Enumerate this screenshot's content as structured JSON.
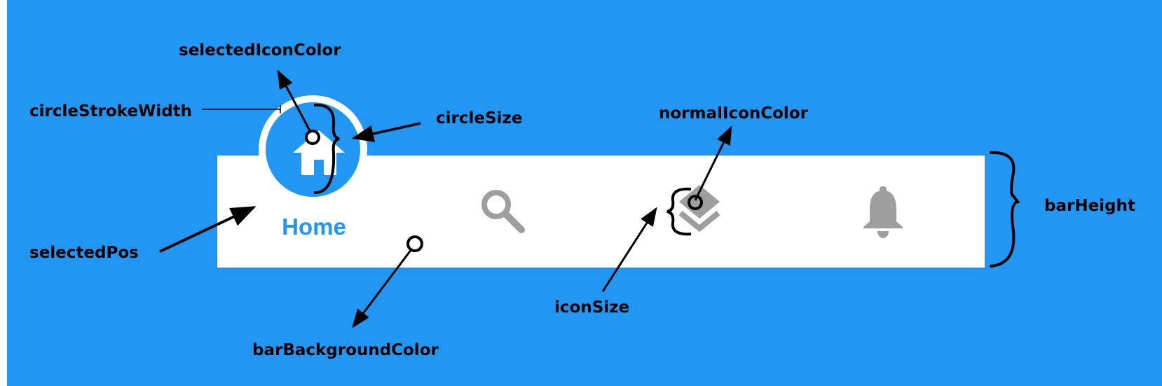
{
  "colors": {
    "background": "#2196F3",
    "bar_background": "#ffffff",
    "selected_circle": "#2196F3",
    "circle_stroke": "#ffffff",
    "selected_icon": "#ffffff",
    "selected_label": "#2196F3",
    "normal_icon": "#9e9e9e",
    "annotation": "#000000"
  },
  "nav": {
    "items": [
      {
        "icon": "home-icon",
        "label": "Home",
        "selected": true
      },
      {
        "icon": "search-icon",
        "selected": false
      },
      {
        "icon": "layers-icon",
        "selected": false
      },
      {
        "icon": "bell-icon",
        "selected": false
      }
    ]
  },
  "annotations": {
    "selected_icon_color": "selectedIconColor",
    "circle_stroke_width": "circleStrokeWidth",
    "circle_size": "circleSize",
    "normal_icon_color": "normalIconColor",
    "bar_height": "barHeight",
    "selected_pos": "selectedPos",
    "icon_size": "iconSize",
    "bar_background_color": "barBackgroundColor"
  }
}
